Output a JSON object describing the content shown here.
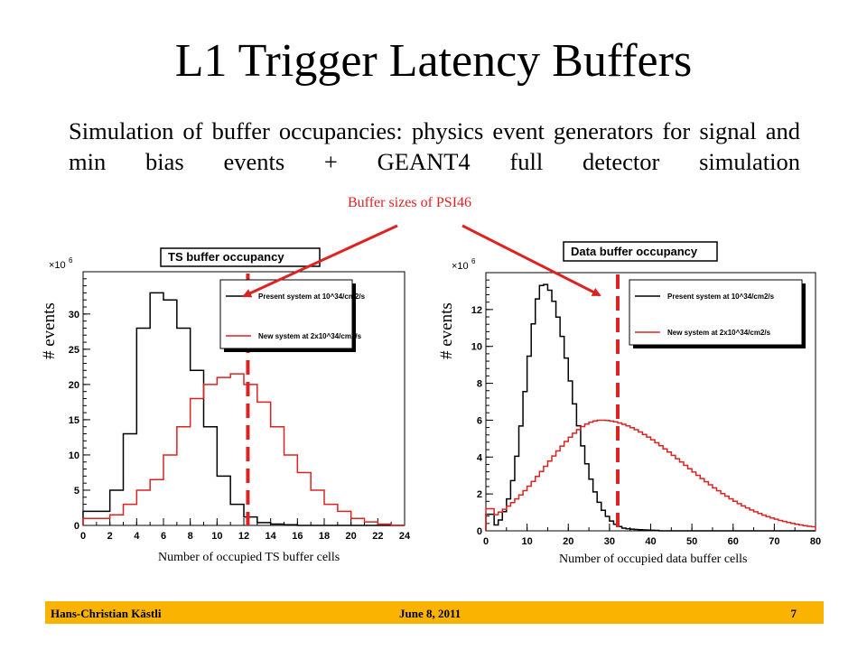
{
  "slide": {
    "title": "L1 Trigger Latency Buffers",
    "subtitle": "Simulation of buffer occupancies: physics event generators for signal and min bias events + GEANT4 full detector simulation",
    "annotation": "Buffer sizes of PSI46",
    "footer": {
      "author": "Hans-Christian Kästli",
      "date": "June 8, 2011",
      "page": "7"
    },
    "colors": {
      "accent": "#dd2222",
      "footer_bar": "#fab300",
      "present": "#000000",
      "new": "#dd2222"
    }
  },
  "chart_data": [
    {
      "type": "histogram",
      "title": "TS buffer occupancy",
      "xlabel": "Number of occupied TS buffer cells",
      "ylabel": "# events",
      "y_multiplier": "×10^6",
      "xlim": [
        0,
        24
      ],
      "ylim": [
        0,
        36
      ],
      "xticks": [
        0,
        2,
        4,
        6,
        8,
        10,
        12,
        14,
        16,
        18,
        20,
        22,
        24
      ],
      "yticks": [
        0,
        5,
        10,
        15,
        20,
        25,
        30
      ],
      "bin_width": 1,
      "x": [
        0,
        1,
        2,
        3,
        4,
        5,
        6,
        7,
        8,
        9,
        10,
        11,
        12,
        13,
        14,
        15,
        16,
        17,
        18,
        19,
        20,
        21,
        22,
        23
      ],
      "series": [
        {
          "name": "Present system at 10^34/cm2/s",
          "color": "#000000",
          "values": [
            2,
            2,
            5,
            13,
            28,
            33,
            32,
            28,
            22,
            14,
            7,
            3,
            1.2,
            0.4,
            0.2,
            0.1,
            0,
            0,
            0,
            0,
            0,
            0,
            0,
            0
          ]
        },
        {
          "name": "New system at 2x10^34/cm2/s",
          "color": "#dd2222",
          "values": [
            1,
            1,
            1.5,
            3,
            5,
            6.5,
            10,
            14,
            18,
            20,
            21,
            21.5,
            20,
            17.5,
            14,
            10,
            7.5,
            5,
            3,
            2,
            1,
            0.5,
            0.2,
            0
          ]
        }
      ],
      "buffer_size_line_x": 12.3,
      "legend_position": "top-right"
    },
    {
      "type": "histogram",
      "title": "Data buffer occupancy",
      "xlabel": "Number of occupied data buffer cells",
      "ylabel": "# events",
      "y_multiplier": "×10^6",
      "xlim": [
        0,
        80
      ],
      "ylim": [
        0,
        14
      ],
      "xticks": [
        0,
        10,
        20,
        30,
        40,
        50,
        60,
        70,
        80
      ],
      "yticks": [
        0,
        2,
        4,
        6,
        8,
        10,
        12
      ],
      "bin_width": 1,
      "series": [
        {
          "name": "Present system at 10^34/cm2/s",
          "color": "#000000",
          "peak_x": 14,
          "peak_y": 13.4,
          "shape": "sharp peak, tail to 40"
        },
        {
          "name": "New system at 2x10^34/cm2/s",
          "color": "#dd2222",
          "peak_x": 28,
          "peak_y": 6,
          "shape": "broad peak, tail to 80"
        }
      ],
      "buffer_size_line_x": 32,
      "legend_position": "top-right"
    }
  ]
}
